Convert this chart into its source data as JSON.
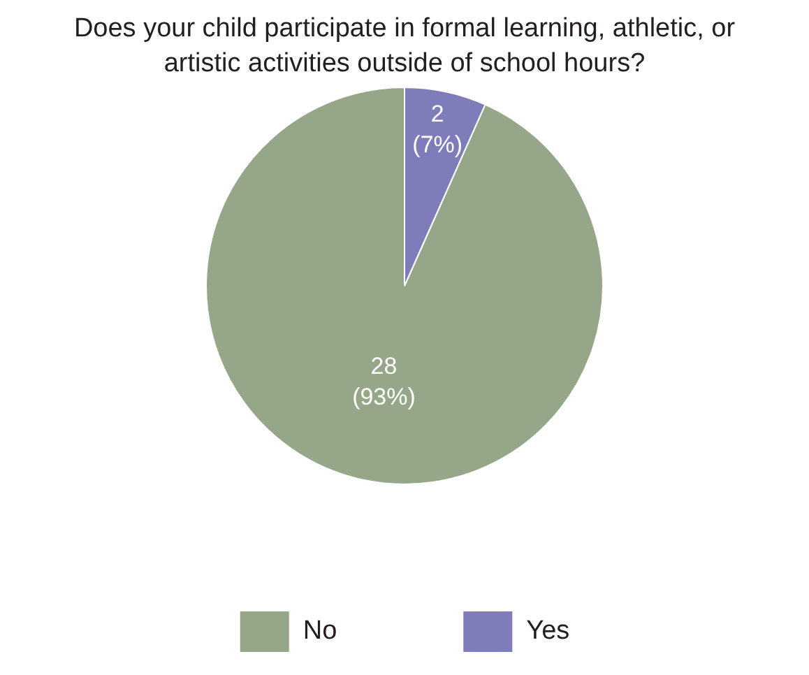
{
  "chart_data": {
    "type": "pie",
    "title": "Does your child participate in formal learning, athletic, or artistic activities outside of school hours?",
    "categories": [
      "No",
      "Yes"
    ],
    "values": [
      28,
      2
    ],
    "colors": [
      "#95a788",
      "#7f7cba"
    ],
    "value_labels": [
      "28\n(93%)",
      "2\n(7%)"
    ],
    "legend": "bottom"
  }
}
